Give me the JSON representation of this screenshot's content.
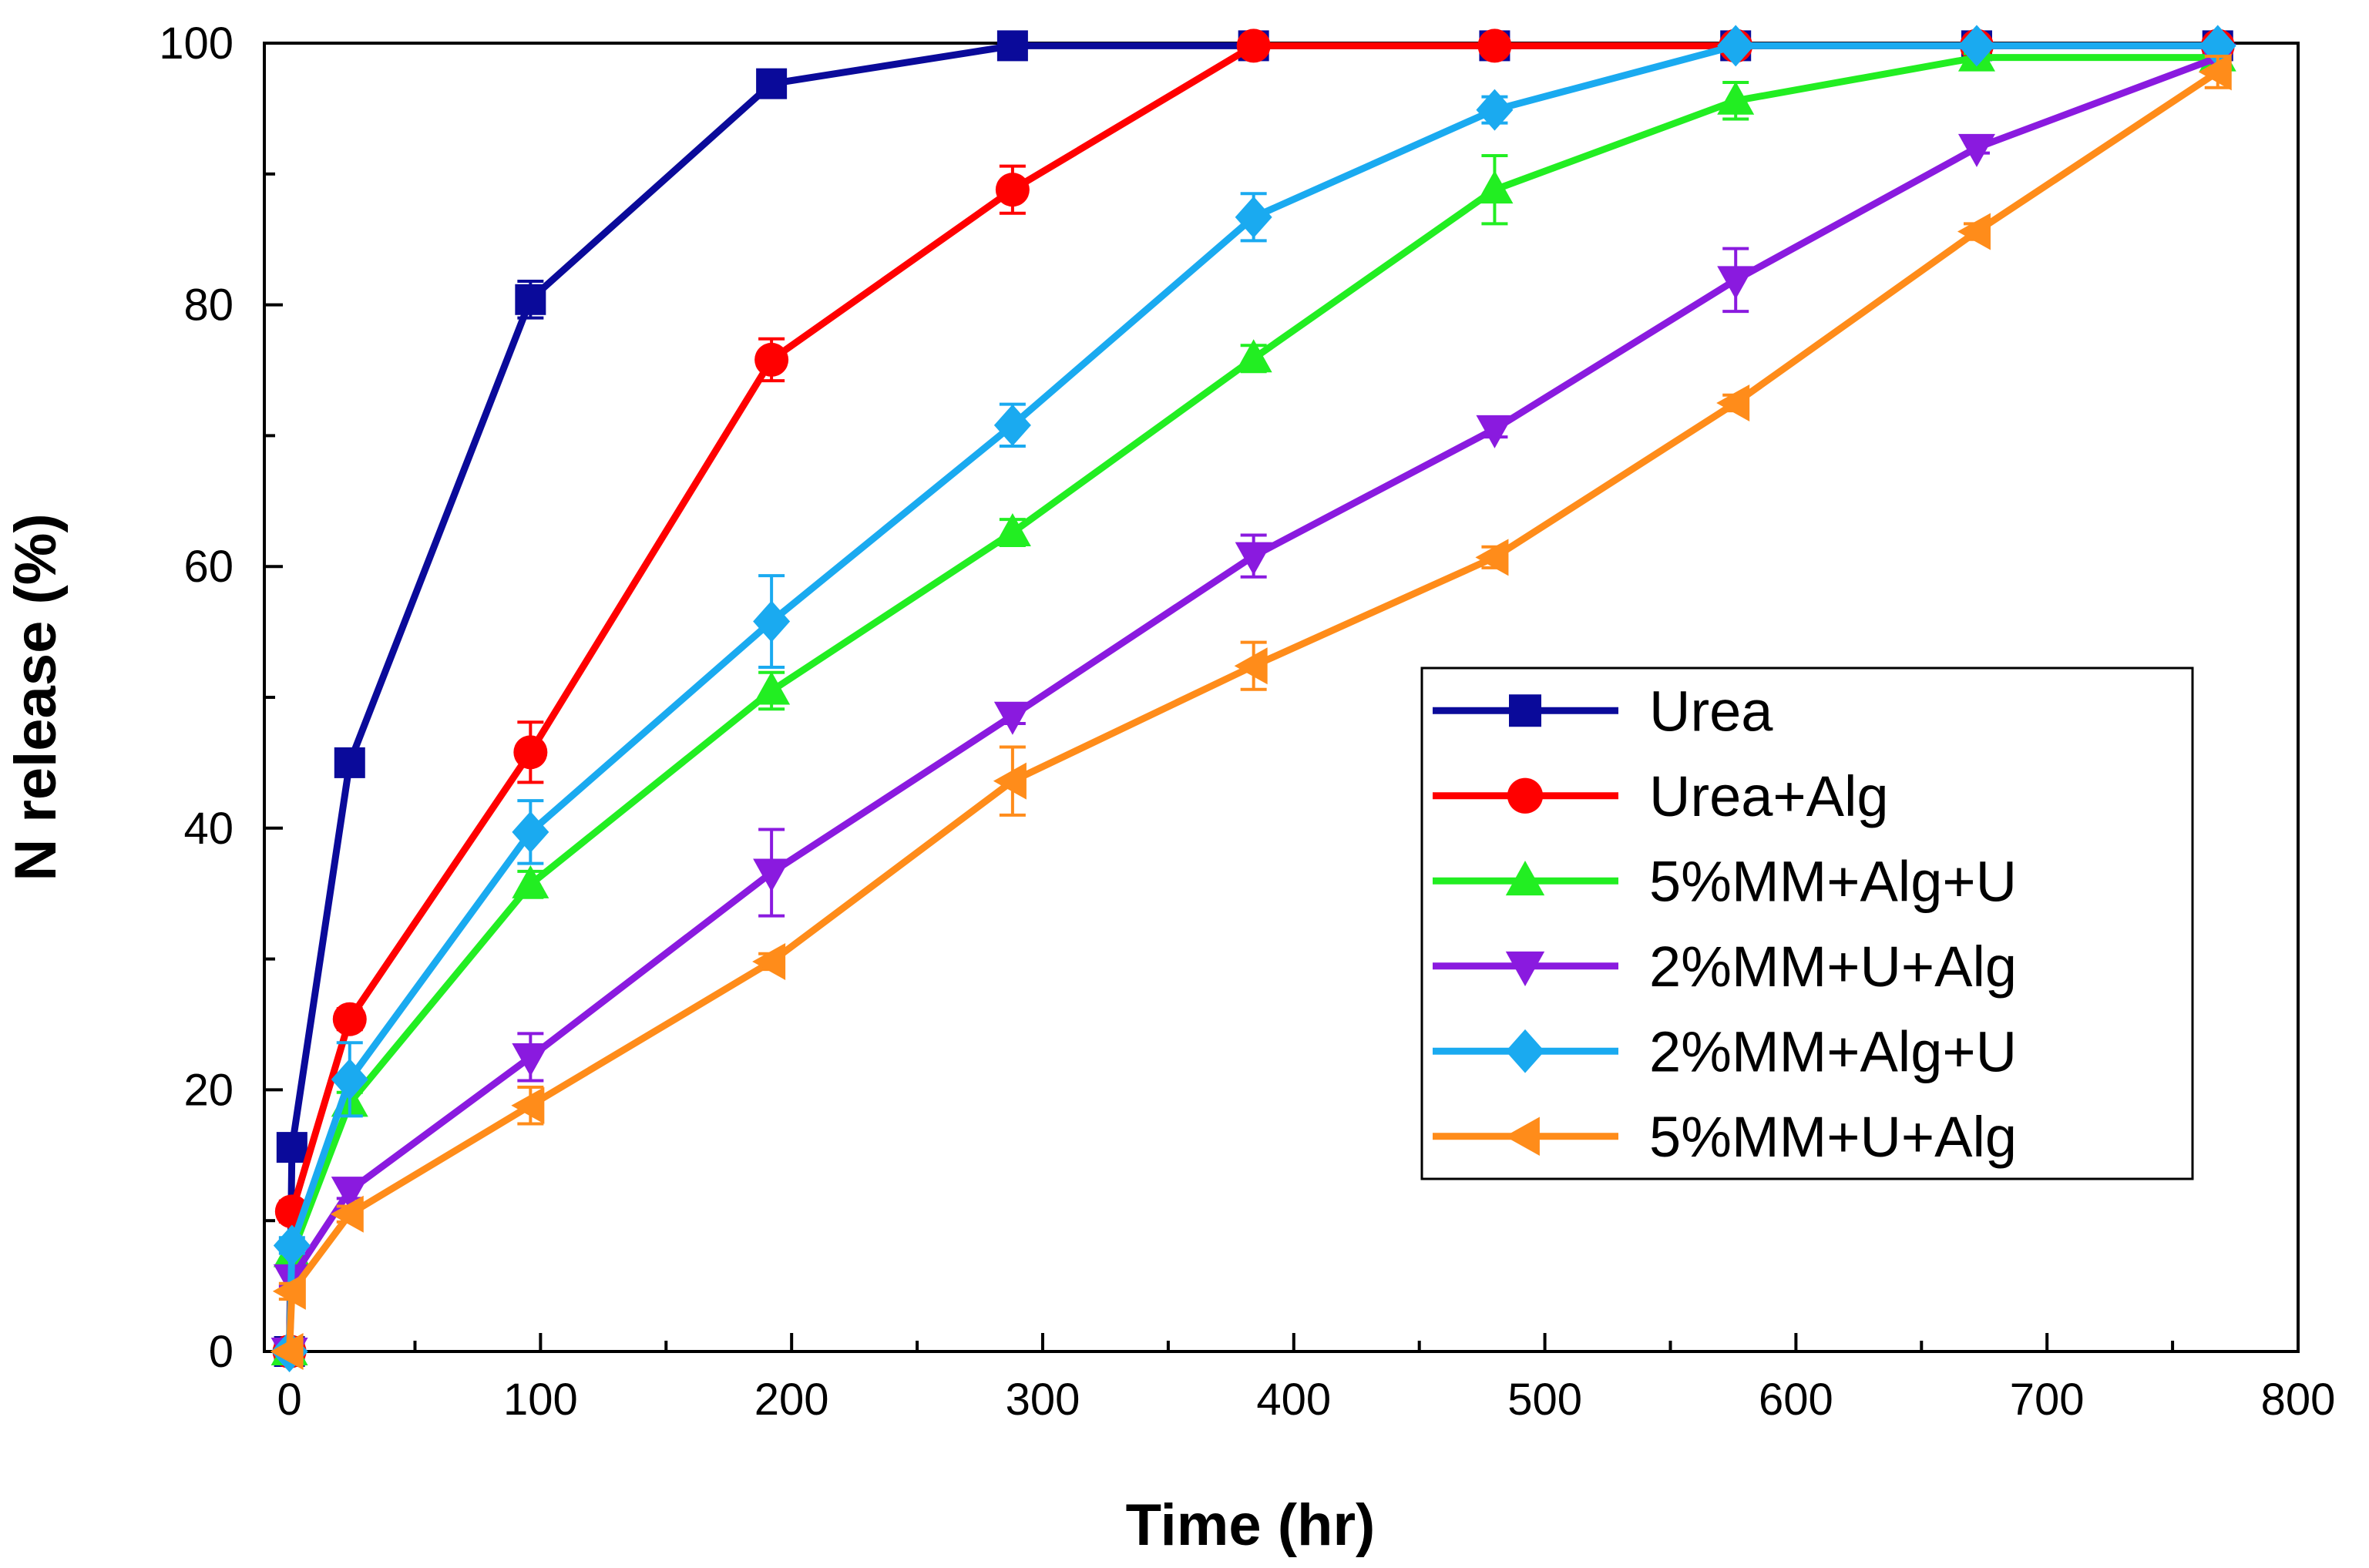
{
  "chart_data": {
    "type": "line",
    "title": "",
    "xlabel": "Time (hr)",
    "ylabel": "N release (%)",
    "xlim": [
      -10,
      800
    ],
    "ylim": [
      0,
      100
    ],
    "x_ticks": [
      0,
      100,
      200,
      300,
      400,
      500,
      600,
      700,
      800
    ],
    "y_ticks": [
      0,
      20,
      40,
      60,
      80,
      100
    ],
    "grid": false,
    "legend_position": "center-right",
    "series": [
      {
        "name": "Urea",
        "color": "#0a0a9a",
        "marker": "square",
        "x": [
          0,
          1,
          24,
          96,
          192,
          288,
          384,
          480,
          576,
          672,
          768
        ],
        "y": [
          0,
          15.6,
          45,
          80.4,
          96.9,
          99.8,
          99.8,
          99.8,
          99.8,
          99.8,
          99.8
        ],
        "err": [
          0,
          0.6,
          0.6,
          1.4,
          0.8,
          0.3,
          0.3,
          0.3,
          0.3,
          0.3,
          0.3
        ]
      },
      {
        "name": "Urea+Alg",
        "color": "#ff0000",
        "marker": "circle",
        "x": [
          0,
          1,
          24,
          96,
          192,
          288,
          384,
          480,
          576,
          672,
          768
        ],
        "y": [
          0,
          10.7,
          25.4,
          45.8,
          75.8,
          88.8,
          99.8,
          99.8,
          99.8,
          99.8,
          99.8
        ],
        "err": [
          0,
          0.8,
          0.8,
          2.3,
          1.6,
          1.8,
          0.3,
          0.3,
          0.3,
          0.3,
          0.3
        ]
      },
      {
        "name": "5%MM+Alg+U",
        "color": "#22ee22",
        "marker": "triangle-up",
        "x": [
          0,
          1,
          24,
          96,
          192,
          288,
          384,
          480,
          576,
          672,
          768
        ],
        "y": [
          0,
          7.5,
          19,
          35.7,
          50.5,
          62.6,
          75.9,
          88.8,
          95.6,
          98.9,
          98.9
        ],
        "err": [
          0,
          0.8,
          0.8,
          1,
          1.4,
          1,
          1,
          2.6,
          1.4,
          0.3,
          0.3
        ]
      },
      {
        "name": "2%MM+U+Alg",
        "color": "#8a1adf",
        "marker": "triangle-down",
        "x": [
          0,
          1,
          24,
          96,
          192,
          288,
          384,
          480,
          576,
          672,
          768
        ],
        "y": [
          0,
          5.6,
          12.3,
          22.5,
          36.6,
          48.6,
          60.8,
          70.5,
          81.9,
          92,
          98.9
        ],
        "err": [
          0,
          0.6,
          0.6,
          1.8,
          3.3,
          0.6,
          1.6,
          0.6,
          2.4,
          0.4,
          0.3
        ]
      },
      {
        "name": "2%MM+Alg+U",
        "color": "#1aaaf0",
        "marker": "diamond",
        "x": [
          0,
          1,
          24,
          96,
          192,
          288,
          384,
          480,
          576,
          672,
          768
        ],
        "y": [
          0,
          8.1,
          20.8,
          39.7,
          55.8,
          70.8,
          86.7,
          94.9,
          99.8,
          99.8,
          99.8
        ],
        "err": [
          0,
          0.6,
          2.8,
          2.4,
          3.5,
          1.6,
          1.8,
          1,
          0.3,
          0.3,
          0.3
        ]
      },
      {
        "name": "5%MM+U+Alg",
        "color": "#ff8c1a",
        "marker": "triangle-left",
        "x": [
          0,
          1,
          24,
          96,
          192,
          288,
          384,
          480,
          576,
          672,
          768
        ],
        "y": [
          0,
          4.6,
          10.5,
          18.8,
          29.8,
          43.6,
          52.4,
          60.7,
          72.5,
          85.6,
          97.8
        ],
        "err": [
          0,
          0.6,
          0.6,
          1.4,
          0.6,
          2.6,
          1.8,
          0.8,
          0.6,
          0.6,
          1.2
        ]
      }
    ]
  }
}
